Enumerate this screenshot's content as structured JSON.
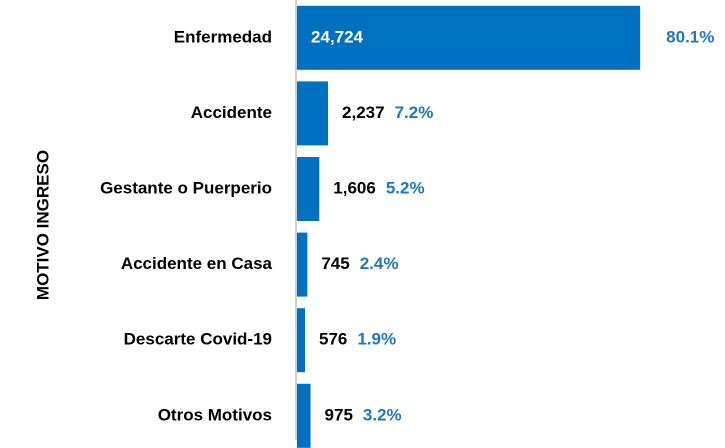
{
  "chart_data": {
    "type": "hbar",
    "y_label": "MOTIVO INGRESO",
    "categories": [
      "Enfermedad",
      "Accidente",
      "Gestante o Puerperio",
      "Accidente en Casa",
      "Descarte Covid-19",
      "Otros Motivos"
    ],
    "values": [
      24724,
      2237,
      1606,
      745,
      576,
      975
    ],
    "value_labels": [
      "24,724",
      "2,237",
      "1,606",
      "745",
      "576",
      "975"
    ],
    "share_labels": [
      "80.1%",
      "7.2%",
      "5.2%",
      "2.4%",
      "1.9%",
      "3.2%"
    ],
    "color": "#0070c0",
    "share_color": "#1f77c0",
    "xlim": [
      0,
      25000
    ]
  }
}
